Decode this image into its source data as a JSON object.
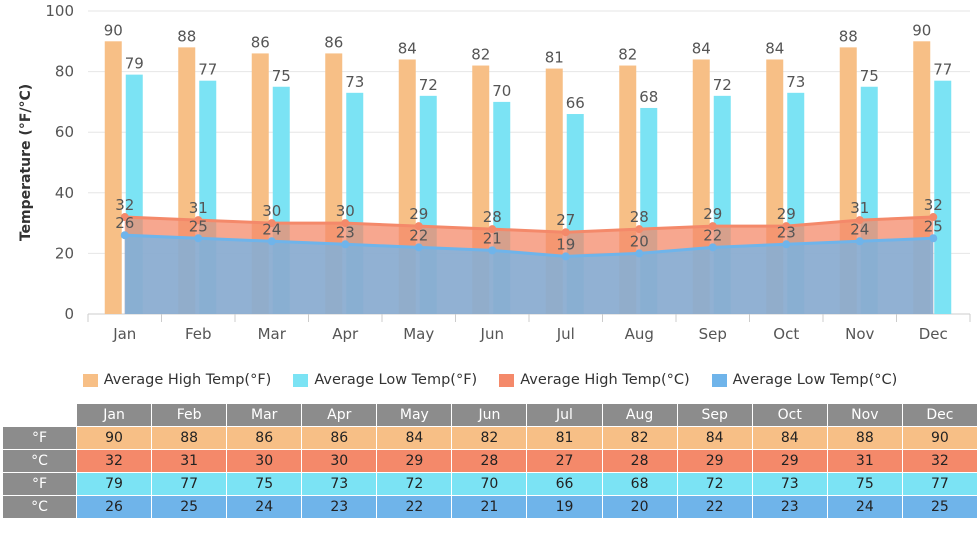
{
  "chart_data": {
    "type": "bar",
    "categories": [
      "Jan",
      "Feb",
      "Mar",
      "Apr",
      "May",
      "Jun",
      "Jul",
      "Aug",
      "Sep",
      "Oct",
      "Nov",
      "Dec"
    ],
    "ylabel": "Temperature (°F/°C)",
    "ylim": [
      0,
      100
    ],
    "yticks": [
      0,
      20,
      40,
      60,
      80,
      100
    ],
    "grid": true,
    "legend_position": "bottom",
    "series": [
      {
        "name": "Average High Temp(°F)",
        "kind": "bar",
        "color": "#f7bf86",
        "values": [
          90,
          88,
          86,
          86,
          84,
          82,
          81,
          82,
          84,
          84,
          88,
          90
        ]
      },
      {
        "name": "Average Low Temp(°F)",
        "kind": "bar",
        "color": "#7be3f4",
        "values": [
          79,
          77,
          75,
          73,
          72,
          70,
          66,
          68,
          72,
          73,
          75,
          77
        ]
      },
      {
        "name": "Average High Temp(°C)",
        "kind": "area",
        "color": "#f4896a",
        "values": [
          32,
          31,
          30,
          30,
          29,
          28,
          27,
          28,
          29,
          29,
          31,
          32
        ]
      },
      {
        "name": "Average Low Temp(°C)",
        "kind": "area",
        "color": "#6fb4ea",
        "values": [
          26,
          25,
          24,
          23,
          22,
          21,
          19,
          20,
          22,
          23,
          24,
          25
        ]
      }
    ]
  },
  "table": {
    "months": [
      "Jan",
      "Feb",
      "Mar",
      "Apr",
      "May",
      "Jun",
      "Jul",
      "Aug",
      "Sep",
      "Oct",
      "Nov",
      "Dec"
    ],
    "rows": [
      {
        "unit": "°F",
        "color": "#f7bf86",
        "values": [
          90,
          88,
          86,
          86,
          84,
          82,
          81,
          82,
          84,
          84,
          88,
          90
        ]
      },
      {
        "unit": "°C",
        "color": "#f4896a",
        "values": [
          32,
          31,
          30,
          30,
          29,
          28,
          27,
          28,
          29,
          29,
          31,
          32
        ]
      },
      {
        "unit": "°F",
        "color": "#7be3f4",
        "values": [
          79,
          77,
          75,
          73,
          72,
          70,
          66,
          68,
          72,
          73,
          75,
          77
        ]
      },
      {
        "unit": "°C",
        "color": "#6fb4ea",
        "values": [
          26,
          25,
          24,
          23,
          22,
          21,
          19,
          20,
          22,
          23,
          24,
          25
        ]
      }
    ]
  }
}
